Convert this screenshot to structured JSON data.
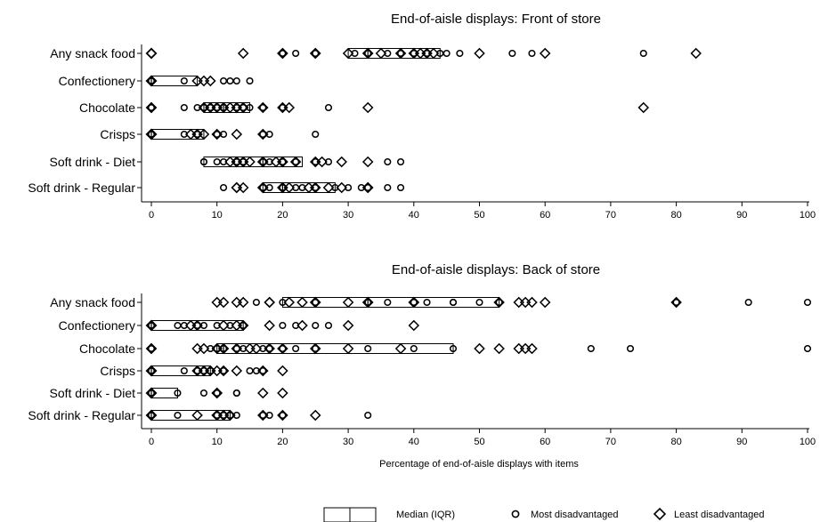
{
  "chart_data": [
    {
      "type": "box-dot",
      "title": "End-of-aisle displays: Front of store",
      "xlim": [
        0,
        100
      ],
      "xticks": [
        0,
        10,
        20,
        30,
        40,
        50,
        60,
        70,
        80,
        90,
        100
      ],
      "categories": [
        {
          "label": "Any snack food",
          "iqr": [
            30,
            44
          ],
          "median": 33,
          "most": [
            20,
            20,
            22,
            25,
            31,
            33,
            36,
            38,
            38,
            40,
            42,
            44,
            45,
            47,
            55,
            58,
            75
          ],
          "least": [
            0,
            0,
            0,
            0,
            14,
            20,
            20,
            25,
            25,
            30,
            33,
            33,
            35,
            38,
            40,
            41,
            42,
            43,
            50,
            60,
            83
          ]
        },
        {
          "label": "Confectionery",
          "iqr": [
            0,
            7
          ],
          "median": 0,
          "most": [
            0,
            0,
            0,
            0,
            5,
            11,
            12,
            13,
            15
          ],
          "least": [
            0,
            0,
            0,
            0,
            0,
            0,
            7,
            8,
            9
          ]
        },
        {
          "label": "Chocolate",
          "iqr": [
            8,
            15
          ],
          "median": 11,
          "most": [
            0,
            0,
            5,
            7,
            8,
            9,
            10,
            11,
            13,
            14,
            15,
            17,
            20,
            27
          ],
          "least": [
            0,
            0,
            8,
            9,
            10,
            11,
            12,
            13,
            14,
            17,
            20,
            21,
            33,
            75
          ]
        },
        {
          "label": "Crisps",
          "iqr": [
            0,
            8
          ],
          "median": 0,
          "most": [
            0,
            0,
            0,
            5,
            7,
            10,
            11,
            17,
            18,
            25
          ],
          "least": [
            0,
            0,
            0,
            0,
            0,
            0,
            6,
            7,
            8,
            10,
            13,
            17
          ]
        },
        {
          "label": "Soft drink - Diet",
          "iqr": [
            8,
            23
          ],
          "median": 17,
          "most": [
            8,
            8,
            10,
            11,
            13,
            14,
            17,
            18,
            20,
            22,
            25,
            27,
            36,
            38
          ],
          "least": [
            12,
            13,
            13,
            14,
            15,
            17,
            17,
            19,
            20,
            20,
            22,
            25,
            26,
            29,
            33
          ]
        },
        {
          "label": "Soft drink - Regular",
          "iqr": [
            17,
            28
          ],
          "median": 20,
          "most": [
            11,
            17,
            18,
            20,
            20,
            22,
            23,
            25,
            28,
            30,
            32,
            33,
            36,
            38
          ],
          "least": [
            13,
            13,
            14,
            17,
            17,
            20,
            20,
            21,
            24,
            25,
            27,
            29,
            33,
            33
          ]
        }
      ]
    },
    {
      "type": "box-dot",
      "title": "End-of-aisle displays: Back of store",
      "xlabel": "Percentage of end-of-aisle displays with items",
      "xlim": [
        0,
        100
      ],
      "xticks": [
        0,
        10,
        20,
        30,
        40,
        50,
        60,
        70,
        80,
        90,
        100
      ],
      "categories": [
        {
          "label": "Any snack food",
          "iqr": [
            20,
            53
          ],
          "median": 33,
          "most": [
            16,
            20,
            25,
            33,
            33,
            36,
            40,
            42,
            46,
            46,
            50,
            53,
            80,
            91,
            100
          ],
          "least": [
            10,
            11,
            13,
            14,
            18,
            18,
            21,
            23,
            25,
            25,
            30,
            33,
            33,
            40,
            40,
            53,
            56,
            57,
            58,
            60,
            80
          ]
        },
        {
          "label": "Confectionery",
          "iqr": [
            0,
            14
          ],
          "median": 0,
          "most": [
            0,
            0,
            0,
            0,
            4,
            5,
            7,
            8,
            10,
            12,
            14,
            20,
            22,
            25,
            27
          ],
          "least": [
            0,
            0,
            0,
            0,
            6,
            7,
            11,
            13,
            14,
            18,
            23,
            30,
            40
          ]
        },
        {
          "label": "Chocolate",
          "iqr": [
            10,
            46
          ],
          "median": 11,
          "most": [
            0,
            0,
            9,
            10,
            11,
            13,
            14,
            17,
            18,
            20,
            22,
            25,
            33,
            40,
            46,
            67,
            73,
            100
          ],
          "least": [
            0,
            0,
            7,
            8,
            10,
            11,
            13,
            15,
            16,
            18,
            20,
            25,
            30,
            38,
            50,
            53,
            56,
            57,
            58
          ]
        },
        {
          "label": "Crisps",
          "iqr": [
            0,
            9
          ],
          "median": 0,
          "most": [
            0,
            0,
            0,
            0,
            5,
            7,
            8,
            9,
            11,
            15,
            16,
            17
          ],
          "least": [
            0,
            0,
            0,
            0,
            0,
            7,
            8,
            9,
            10,
            11,
            13,
            17,
            20
          ]
        },
        {
          "label": "Soft drink - Diet",
          "iqr": [
            0,
            4
          ],
          "median": 0,
          "most": [
            0,
            0,
            0,
            0,
            4,
            8,
            10,
            13,
            13
          ],
          "least": [
            0,
            0,
            0,
            0,
            0,
            10,
            10,
            17,
            20
          ]
        },
        {
          "label": "Soft drink - Regular",
          "iqr": [
            0,
            12
          ],
          "median": 0,
          "most": [
            0,
            0,
            0,
            4,
            10,
            11,
            12,
            13,
            17,
            18,
            20,
            33
          ],
          "least": [
            0,
            0,
            0,
            0,
            7,
            10,
            10,
            11,
            12,
            17,
            20,
            25
          ]
        }
      ]
    }
  ],
  "legend": {
    "iqr_label": "Median (IQR)",
    "most_label": "Most disadvantaged",
    "least_label": "Least disadvantaged"
  }
}
